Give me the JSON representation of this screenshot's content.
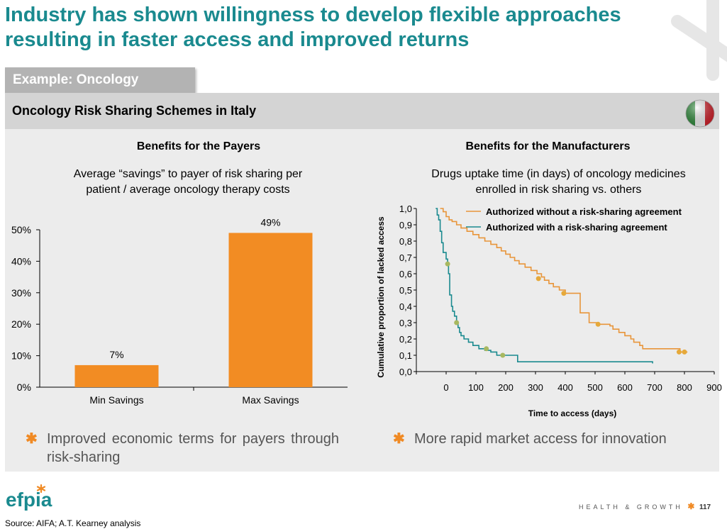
{
  "title_line1": "Industry has shown willingness to develop flexible approaches",
  "title_line2": "resulting in faster access and improved returns",
  "example_tab": "Example: Oncology",
  "panel_title": "Oncology Risk Sharing Schemes in Italy",
  "left": {
    "heading": "Benefits for the Payers",
    "subtitle_line1": "Average “savings” to payer of risk sharing per",
    "subtitle_line2": "patient / average oncology therapy costs",
    "bullet": "Improved economic terms for payers through risk-sharing"
  },
  "right": {
    "heading": "Benefits for the Manufacturers",
    "subtitle_line1": "Drugs uptake time (in days) of oncology medicines",
    "subtitle_line2": "enrolled in risk sharing vs. others",
    "bullet": "More rapid market access for innovation"
  },
  "colors": {
    "accent": "#f08a24",
    "teal": "#1a8a8f",
    "bar": "#f28c23",
    "line_orange": "#e8953a",
    "line_teal": "#1a8a8f"
  },
  "chart_data": [
    {
      "type": "bar",
      "categories": [
        "Min Savings",
        "Max Savings"
      ],
      "values": [
        7,
        49
      ],
      "value_labels": [
        "7%",
        "49%"
      ],
      "ylim": [
        0,
        50
      ],
      "yticks": [
        "0%",
        "10%",
        "20%",
        "30%",
        "40%",
        "50%"
      ],
      "ytick_values": [
        0,
        10,
        20,
        30,
        40,
        50
      ]
    },
    {
      "type": "line",
      "xlabel": "Time to access (days)",
      "ylabel": "Cumulative proportion of lacked access",
      "xlim": [
        -100,
        900
      ],
      "ylim": [
        0,
        1
      ],
      "xticks": [
        "0",
        "100",
        "200",
        "300",
        "400",
        "500",
        "600",
        "700",
        "800",
        "900"
      ],
      "xtick_values": [
        0,
        100,
        200,
        300,
        400,
        500,
        600,
        700,
        800,
        900
      ],
      "yticks": [
        "0,0",
        "0,1",
        "0,2",
        "0,3",
        "0,4",
        "0,5",
        "0,6",
        "0,7",
        "0,8",
        "0,9",
        "1,0"
      ],
      "ytick_values": [
        0,
        0.1,
        0.2,
        0.3,
        0.4,
        0.5,
        0.6,
        0.7,
        0.8,
        0.9,
        1.0
      ],
      "series": [
        {
          "name": "Authorized without a risk-sharing agreement",
          "color": "#e8953a",
          "points": [
            [
              -20,
              1.0
            ],
            [
              -10,
              0.98
            ],
            [
              0,
              0.95
            ],
            [
              10,
              0.93
            ],
            [
              20,
              0.92
            ],
            [
              35,
              0.9
            ],
            [
              50,
              0.88
            ],
            [
              70,
              0.86
            ],
            [
              90,
              0.84
            ],
            [
              110,
              0.82
            ],
            [
              130,
              0.8
            ],
            [
              150,
              0.78
            ],
            [
              170,
              0.76
            ],
            [
              185,
              0.74
            ],
            [
              200,
              0.72
            ],
            [
              215,
              0.7
            ],
            [
              230,
              0.68
            ],
            [
              245,
              0.66
            ],
            [
              265,
              0.64
            ],
            [
              285,
              0.62
            ],
            [
              305,
              0.6
            ],
            [
              320,
              0.58
            ],
            [
              330,
              0.56
            ],
            [
              345,
              0.54
            ],
            [
              360,
              0.52
            ],
            [
              380,
              0.5
            ],
            [
              400,
              0.48
            ],
            [
              440,
              0.48
            ],
            [
              450,
              0.36
            ],
            [
              475,
              0.36
            ],
            [
              480,
              0.3
            ],
            [
              510,
              0.29
            ],
            [
              550,
              0.28
            ],
            [
              560,
              0.26
            ],
            [
              580,
              0.24
            ],
            [
              600,
              0.22
            ],
            [
              620,
              0.2
            ],
            [
              630,
              0.18
            ],
            [
              650,
              0.16
            ],
            [
              660,
              0.14
            ],
            [
              780,
              0.14
            ],
            [
              785,
              0.12
            ],
            [
              810,
              0.12
            ]
          ],
          "markers": [
            [
              310,
              0.57
            ],
            [
              395,
              0.48
            ],
            [
              510,
              0.29
            ],
            [
              782,
              0.12
            ],
            [
              800,
              0.12
            ]
          ]
        },
        {
          "name": "Authorized with a risk-sharing agreement",
          "color": "#1a8a8f",
          "points": [
            [
              -35,
              1.0
            ],
            [
              -30,
              0.96
            ],
            [
              -25,
              0.93
            ],
            [
              -20,
              0.86
            ],
            [
              -15,
              0.79
            ],
            [
              -10,
              0.73
            ],
            [
              0,
              0.69
            ],
            [
              5,
              0.66
            ],
            [
              8,
              0.6
            ],
            [
              12,
              0.47
            ],
            [
              18,
              0.4
            ],
            [
              22,
              0.37
            ],
            [
              28,
              0.34
            ],
            [
              35,
              0.3
            ],
            [
              40,
              0.27
            ],
            [
              45,
              0.24
            ],
            [
              50,
              0.22
            ],
            [
              60,
              0.2
            ],
            [
              75,
              0.18
            ],
            [
              90,
              0.16
            ],
            [
              110,
              0.14
            ],
            [
              130,
              0.13
            ],
            [
              150,
              0.12
            ],
            [
              170,
              0.1
            ],
            [
              230,
              0.1
            ],
            [
              240,
              0.06
            ],
            [
              280,
              0.06
            ],
            [
              500,
              0.06
            ],
            [
              690,
              0.06
            ],
            [
              693,
              0.05
            ]
          ],
          "markers": [
            [
              5,
              0.66
            ],
            [
              35,
              0.3
            ],
            [
              135,
              0.14
            ],
            [
              190,
              0.1
            ]
          ]
        }
      ]
    }
  ],
  "footer": {
    "tagline": "HEALTH & GROWTH",
    "page": "117",
    "logo_text": "efpia"
  },
  "source": "Source: AIFA;  A.T. Kearney analysis"
}
